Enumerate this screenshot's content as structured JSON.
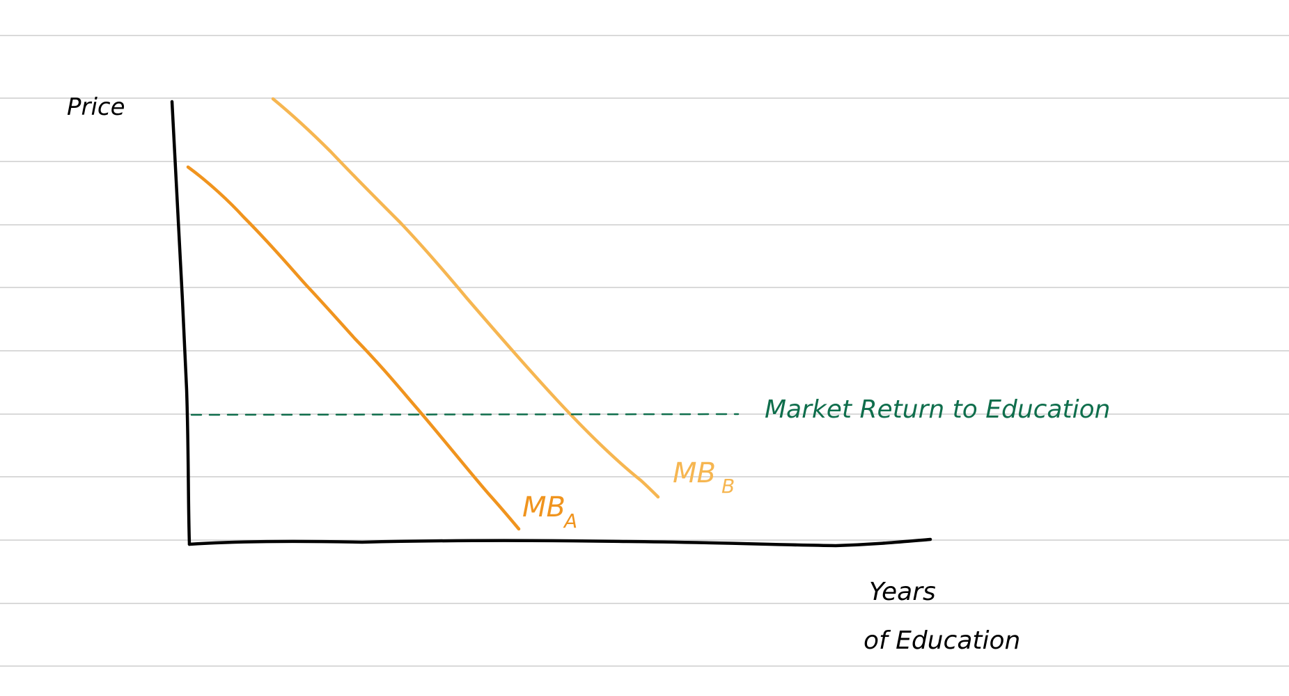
{
  "diagram": {
    "y_axis_label": "Price",
    "x_axis_label_line1": "Years",
    "x_axis_label_line2": "of Education",
    "curves": [
      {
        "id": "mb-a",
        "label_main": "MB",
        "label_sub": "A",
        "color": "#f0941e"
      },
      {
        "id": "mb-b",
        "label_main": "MB",
        "label_sub": "B",
        "color": "#f6b651"
      }
    ],
    "market_return": {
      "label": "Market Return to Education",
      "color": "#0f6e4c"
    }
  },
  "colors": {
    "rule": "#d9d9d9",
    "axis": "#000000",
    "background": "#ffffff"
  }
}
